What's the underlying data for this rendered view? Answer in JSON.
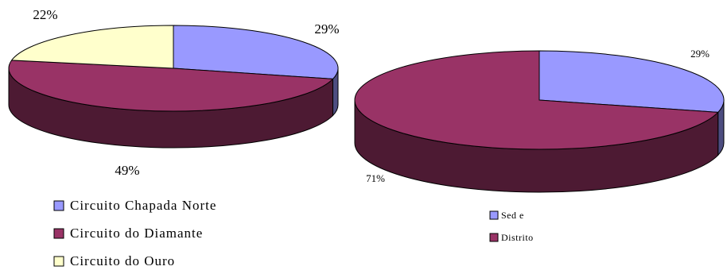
{
  "chart_data": [
    {
      "type": "pie",
      "title": "",
      "categories": [
        "Circuito Chapada Norte",
        "Circuito do Diamante",
        "Circuito do Ouro"
      ],
      "values": [
        29,
        49,
        22
      ],
      "labels": [
        "29%",
        "49%",
        "22%"
      ],
      "colors": [
        "#9999ff",
        "#993366",
        "#ffffcc"
      ],
      "legend_labels": [
        "Circuito Chapada Norte",
        "Circuito do Diamante",
        "Circuito do Ouro"
      ],
      "legend_position": "bottom"
    },
    {
      "type": "pie",
      "title": "",
      "categories": [
        "Sede",
        "Distrito"
      ],
      "values": [
        29,
        71
      ],
      "labels": [
        "29%",
        "71%"
      ],
      "colors": [
        "#9999ff",
        "#993366"
      ],
      "legend_labels": [
        "Sed e",
        "Distrito"
      ],
      "legend_position": "bottom"
    }
  ]
}
